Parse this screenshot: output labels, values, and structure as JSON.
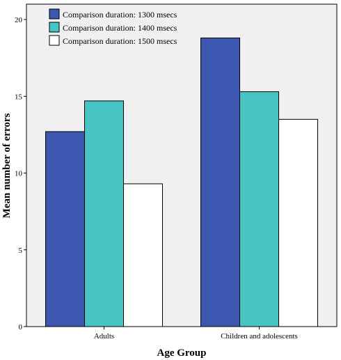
{
  "chart_data": {
    "type": "bar",
    "title": "",
    "xlabel": "Age Group",
    "ylabel": "Mean number of errors",
    "categories": [
      "Adults",
      "Children and adolescents"
    ],
    "series": [
      {
        "name": "Comparison duration: 1300 msecs",
        "values": [
          12.7,
          18.8
        ],
        "color": "#3c57b0"
      },
      {
        "name": "Comparison duration: 1400 msecs",
        "values": [
          14.7,
          15.3
        ],
        "color": "#48c4c4"
      },
      {
        "name": "Comparison duration: 1500 msecs",
        "values": [
          9.3,
          13.5
        ],
        "color": "#ffffff"
      }
    ],
    "ylim": [
      0,
      21
    ],
    "yticks": [
      0,
      5,
      10,
      15,
      20
    ],
    "grid": false,
    "legend_position": "top-left",
    "plot_background": "#f0f0f0"
  }
}
